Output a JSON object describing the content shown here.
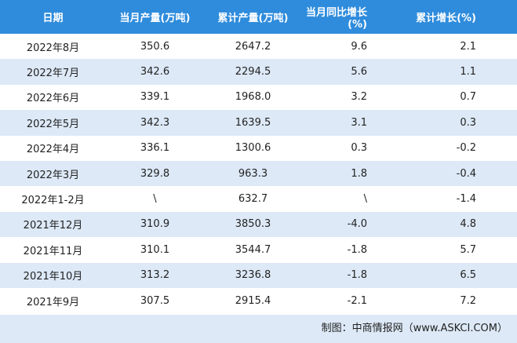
{
  "table": {
    "header": [
      "日期",
      "当月产量(万吨)",
      "累计产量(万吨)",
      "当月同比增长(%)",
      "累计增长(%)"
    ],
    "rows": [
      [
        "2022年8月",
        "350.6",
        "2647.2",
        "9.6",
        "2.1"
      ],
      [
        "2022年7月",
        "342.6",
        "2294.5",
        "5.6",
        "1.1"
      ],
      [
        "2022年6月",
        "339.1",
        "1968.0",
        "3.2",
        "0.7"
      ],
      [
        "2022年5月",
        "342.3",
        "1639.5",
        "3.1",
        "0.3"
      ],
      [
        "2022年4月",
        "336.1",
        "1300.6",
        "0.3",
        "-0.2"
      ],
      [
        "2022年3月",
        "329.8",
        "963.3",
        "1.8",
        "-0.4"
      ],
      [
        "2022年1-2月",
        "\\",
        "632.7",
        "\\",
        "-1.4"
      ],
      [
        "2021年12月",
        "310.9",
        "3850.3",
        "-4.0",
        "4.8"
      ],
      [
        "2021年11月",
        "310.1",
        "3544.7",
        "-1.8",
        "5.7"
      ],
      [
        "2021年10月",
        "313.2",
        "3236.8",
        "-1.8",
        "6.5"
      ],
      [
        "2021年9月",
        "307.5",
        "2915.4",
        "-2.1",
        "7.2"
      ]
    ],
    "source": "制图：中商情报网（www.ASKCI.COM）"
  }
}
